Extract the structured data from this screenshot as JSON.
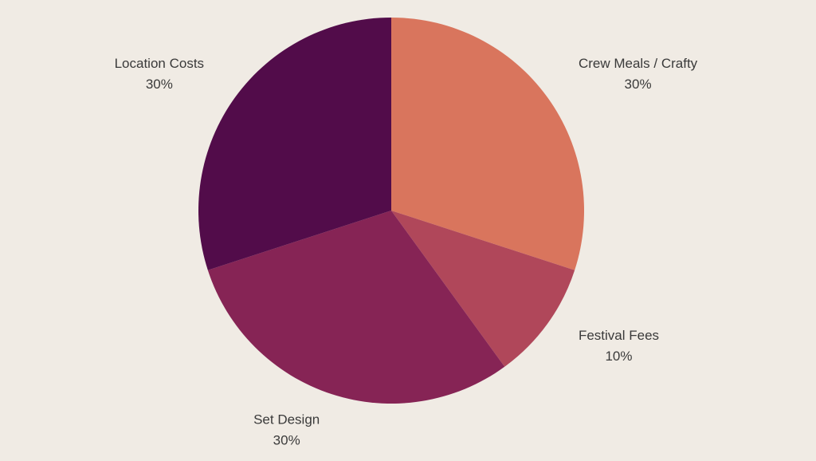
{
  "chart_data": {
    "type": "pie",
    "categories": [
      "Crew Meals / Crafty",
      "Festival Fees",
      "Set Design",
      "Location Costs"
    ],
    "values": [
      30,
      10,
      30,
      30
    ],
    "value_labels": [
      "30%",
      "10%",
      "30%",
      "30%"
    ],
    "colors": [
      "#d9755d",
      "#b0475a",
      "#862455",
      "#520c4a"
    ]
  }
}
